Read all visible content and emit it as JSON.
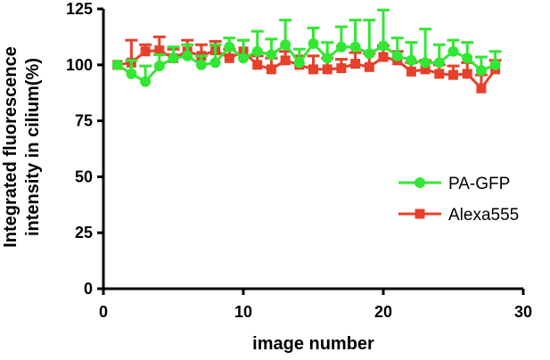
{
  "chart_data": {
    "type": "line",
    "title": "",
    "xlabel": "image number",
    "ylabel_lines": [
      "Integrated fluorescence",
      "intensity in cilium(%)"
    ],
    "xlim": [
      0,
      30
    ],
    "ylim": [
      0,
      125
    ],
    "xticks": [
      "0",
      "10",
      "20",
      "30"
    ],
    "yticks": [
      "0",
      "25",
      "50",
      "75",
      "100",
      "125"
    ],
    "grid": false,
    "legend_position": "right",
    "series": [
      {
        "name": "PA-GFP",
        "color": "#33e633",
        "marker": "circle",
        "x": [
          1,
          2,
          3,
          4,
          5,
          6,
          7,
          8,
          9,
          10,
          11,
          12,
          13,
          14,
          15,
          16,
          17,
          18,
          19,
          20,
          21,
          22,
          23,
          24,
          25,
          26,
          27,
          28
        ],
        "y": [
          100,
          96,
          92.5,
          99.5,
          103,
          104,
          100,
          101,
          108,
          103,
          106,
          104.5,
          109,
          101,
          109.5,
          103,
          108,
          108,
          105,
          108.5,
          104,
          102,
          101,
          101,
          106,
          103,
          97.5,
          100
        ],
        "err": [
          0,
          6,
          7,
          5,
          5,
          5,
          4,
          8,
          4,
          8,
          9,
          7,
          11,
          6,
          7,
          7,
          9,
          12,
          15,
          16,
          8,
          8,
          15,
          8,
          5,
          7,
          6,
          6
        ]
      },
      {
        "name": "Alexa555",
        "color": "#e8402a",
        "marker": "square",
        "x": [
          1,
          2,
          3,
          4,
          5,
          6,
          7,
          8,
          9,
          10,
          11,
          12,
          13,
          14,
          15,
          16,
          17,
          18,
          19,
          20,
          21,
          22,
          23,
          24,
          25,
          26,
          27,
          28
        ],
        "y": [
          100,
          101,
          106,
          106.5,
          103,
          106,
          104,
          106.5,
          103,
          106,
          100,
          98,
          102,
          100,
          98,
          98,
          98.5,
          100.5,
          99,
          103.5,
          102,
          97,
          98,
          96,
          95.5,
          96,
          89.5,
          98
        ],
        "err": [
          0,
          10,
          3,
          6,
          4,
          5,
          5,
          4,
          4,
          5,
          4,
          5,
          4,
          4,
          6,
          5,
          4,
          5,
          6,
          5,
          4,
          4,
          4,
          4,
          4,
          5,
          6,
          4
        ]
      }
    ]
  }
}
